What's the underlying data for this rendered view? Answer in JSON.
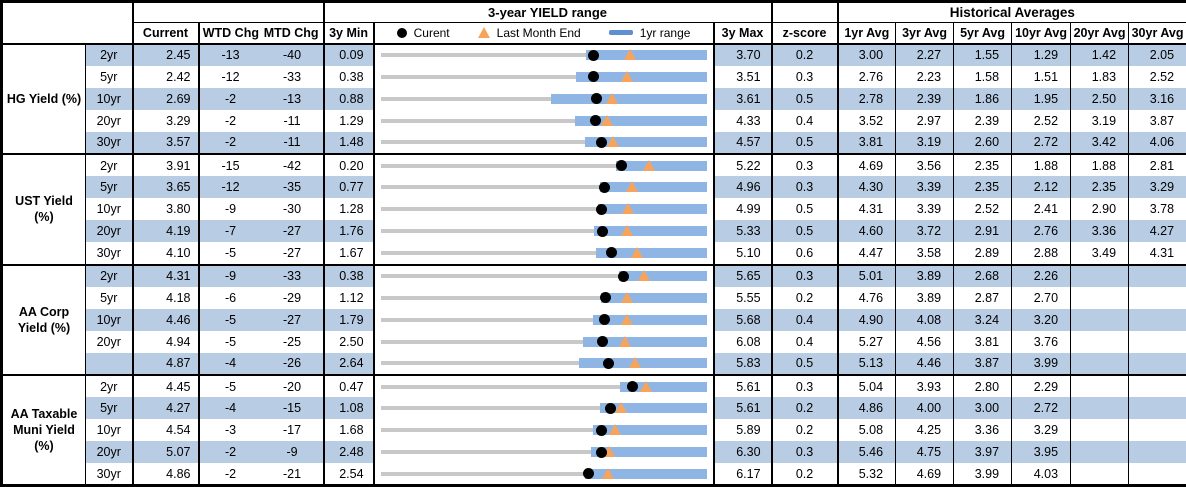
{
  "header": {
    "col_current": "Current",
    "col_wtd": "WTD Chg",
    "col_mtd": "MTD Chg",
    "col_3y_min": "3y Min",
    "chart_title": "3-year YIELD range",
    "legend": {
      "current": "Curent",
      "last_month_end": "Last Month End",
      "range_1yr": "1yr range"
    },
    "col_3y_max": "3y Max",
    "col_zscore": "z-score",
    "historical_title": "Historical Averages",
    "avg_cols": [
      "1yr Avg",
      "3yr Avg",
      "5yr Avg",
      "10yr Avg",
      "20yr Avg",
      "30yr Avg"
    ]
  },
  "colors": {
    "row_band_blue": "#b8cce4",
    "bar_1yr_blue": "#8fb5e4",
    "legend_dash_blue": "#5e8fd1",
    "marker_orange": "#f6a45c",
    "range_line_gray": "#c8c8c8",
    "marker_black": "#000000",
    "border_black": "#000000"
  },
  "chart_data": {
    "type": "table",
    "title": "3-year YIELD range",
    "description": "Yield table with embedded dot-plot range charts. Gray line spans 3y Min to 3y Max; blue bar is the 1yr range (est_1yr_low to est_1yr_high, estimated from pixels); black dot = Current; orange triangle = last month end (current - mtd_chg_bp/100).",
    "columns": [
      "tenor",
      "current",
      "wtd_chg_bp",
      "mtd_chg_bp",
      "3y_min",
      "3y_max",
      "z_score",
      "1yr_avg",
      "3yr_avg",
      "5yr_avg",
      "10yr_avg",
      "20yr_avg",
      "30yr_avg"
    ],
    "groups": [
      {
        "label": "HG Yield (%)",
        "rows": [
          {
            "tenor": "2yr",
            "current": "2.45",
            "wtd": "-13",
            "mtd": "-40",
            "min": "0.09",
            "max": "3.70",
            "z": "0.2",
            "lme": "2.85",
            "r1lo": "2.36",
            "r1hi": "3.70",
            "avgs": [
              "3.00",
              "2.27",
              "1.55",
              "1.29",
              "1.42",
              "2.05"
            ]
          },
          {
            "tenor": "5yr",
            "current": "2.42",
            "wtd": "-12",
            "mtd": "-33",
            "min": "0.38",
            "max": "3.51",
            "z": "0.3",
            "lme": "2.75",
            "r1lo": "2.26",
            "r1hi": "3.51",
            "avgs": [
              "2.76",
              "2.23",
              "1.58",
              "1.51",
              "1.83",
              "2.52"
            ]
          },
          {
            "tenor": "10yr",
            "current": "2.69",
            "wtd": "-2",
            "mtd": "-13",
            "min": "0.88",
            "max": "3.61",
            "z": "0.5",
            "lme": "2.82",
            "r1lo": "2.31",
            "r1hi": "3.61",
            "avgs": [
              "2.78",
              "2.39",
              "1.86",
              "1.95",
              "2.50",
              "3.16"
            ]
          },
          {
            "tenor": "20yr",
            "current": "3.29",
            "wtd": "-2",
            "mtd": "-11",
            "min": "1.29",
            "max": "4.33",
            "z": "0.4",
            "lme": "3.40",
            "r1lo": "3.10",
            "r1hi": "4.33",
            "avgs": [
              "3.52",
              "2.97",
              "2.39",
              "2.52",
              "3.19",
              "3.87"
            ]
          },
          {
            "tenor": "30yr",
            "current": "3.57",
            "wtd": "-2",
            "mtd": "-11",
            "min": "1.48",
            "max": "4.57",
            "z": "0.5",
            "lme": "3.68",
            "r1lo": "3.42",
            "r1hi": "4.57",
            "avgs": [
              "3.81",
              "3.19",
              "2.60",
              "2.72",
              "3.42",
              "4.06"
            ]
          }
        ]
      },
      {
        "label": "UST Yield (%)",
        "rows": [
          {
            "tenor": "2yr",
            "current": "3.91",
            "wtd": "-15",
            "mtd": "-42",
            "min": "0.20",
            "max": "5.22",
            "z": "0.3",
            "lme": "4.33",
            "r1lo": "3.82",
            "r1hi": "5.22",
            "avgs": [
              "4.69",
              "3.56",
              "2.35",
              "1.88",
              "1.88",
              "2.81"
            ]
          },
          {
            "tenor": "5yr",
            "current": "3.65",
            "wtd": "-12",
            "mtd": "-35",
            "min": "0.77",
            "max": "4.96",
            "z": "0.3",
            "lme": "4.00",
            "r1lo": "3.59",
            "r1hi": "4.96",
            "avgs": [
              "4.30",
              "3.39",
              "2.35",
              "2.12",
              "2.35",
              "3.29"
            ]
          },
          {
            "tenor": "10yr",
            "current": "3.80",
            "wtd": "-9",
            "mtd": "-30",
            "min": "1.28",
            "max": "4.99",
            "z": "0.5",
            "lme": "4.10",
            "r1lo": "3.75",
            "r1hi": "4.99",
            "avgs": [
              "4.31",
              "3.39",
              "2.52",
              "2.41",
              "2.90",
              "3.78"
            ]
          },
          {
            "tenor": "20yr",
            "current": "4.19",
            "wtd": "-7",
            "mtd": "-27",
            "min": "1.76",
            "max": "5.33",
            "z": "0.5",
            "lme": "4.46",
            "r1lo": "4.10",
            "r1hi": "5.33",
            "avgs": [
              "4.60",
              "3.72",
              "2.91",
              "2.76",
              "3.36",
              "4.27"
            ]
          },
          {
            "tenor": "30yr",
            "current": "4.10",
            "wtd": "-5",
            "mtd": "-27",
            "min": "1.67",
            "max": "5.10",
            "z": "0.6",
            "lme": "4.37",
            "r1lo": "3.94",
            "r1hi": "5.10",
            "avgs": [
              "4.47",
              "3.58",
              "2.89",
              "2.88",
              "3.49",
              "4.31"
            ]
          }
        ]
      },
      {
        "label": "AA Corp Yield (%)",
        "rows": [
          {
            "tenor": "2yr",
            "current": "4.31",
            "wtd": "-9",
            "mtd": "-33",
            "min": "0.38",
            "max": "5.65",
            "z": "0.3",
            "lme": "4.64",
            "r1lo": "4.23",
            "r1hi": "5.65",
            "avgs": [
              "5.01",
              "3.89",
              "2.68",
              "2.26",
              "",
              ""
            ]
          },
          {
            "tenor": "5yr",
            "current": "4.18",
            "wtd": "-6",
            "mtd": "-29",
            "min": "1.12",
            "max": "5.55",
            "z": "0.2",
            "lme": "4.47",
            "r1lo": "4.12",
            "r1hi": "5.55",
            "avgs": [
              "4.76",
              "3.89",
              "2.87",
              "2.70",
              "",
              ""
            ]
          },
          {
            "tenor": "10yr",
            "current": "4.46",
            "wtd": "-5",
            "mtd": "-27",
            "min": "1.79",
            "max": "5.68",
            "z": "0.4",
            "lme": "4.73",
            "r1lo": "4.33",
            "r1hi": "5.68",
            "avgs": [
              "4.90",
              "4.08",
              "3.24",
              "3.20",
              "",
              ""
            ]
          },
          {
            "tenor": "20yr",
            "current": "4.94",
            "wtd": "-5",
            "mtd": "-25",
            "min": "2.50",
            "max": "6.08",
            "z": "0.4",
            "lme": "5.19",
            "r1lo": "4.72",
            "r1hi": "6.08",
            "avgs": [
              "5.27",
              "4.56",
              "3.81",
              "3.76",
              "",
              ""
            ]
          },
          {
            "tenor": "",
            "current": "4.87",
            "wtd": "-4",
            "mtd": "-26",
            "min": "2.64",
            "max": "5.83",
            "z": "0.5",
            "lme": "5.13",
            "r1lo": "4.58",
            "r1hi": "5.83",
            "avgs": [
              "5.13",
              "4.46",
              "3.87",
              "3.99",
              "",
              ""
            ]
          }
        ]
      },
      {
        "label": "AA Taxable Muni Yield (%)",
        "rows": [
          {
            "tenor": "2yr",
            "current": "4.45",
            "wtd": "-5",
            "mtd": "-20",
            "min": "0.47",
            "max": "5.61",
            "z": "0.3",
            "lme": "4.65",
            "r1lo": "4.25",
            "r1hi": "5.61",
            "avgs": [
              "5.04",
              "3.93",
              "2.80",
              "2.29",
              "",
              ""
            ]
          },
          {
            "tenor": "5yr",
            "current": "4.27",
            "wtd": "-4",
            "mtd": "-15",
            "min": "1.08",
            "max": "5.61",
            "z": "0.2",
            "lme": "4.42",
            "r1lo": "4.13",
            "r1hi": "5.61",
            "avgs": [
              "4.86",
              "4.00",
              "3.00",
              "2.72",
              "",
              ""
            ]
          },
          {
            "tenor": "10yr",
            "current": "4.54",
            "wtd": "-3",
            "mtd": "-17",
            "min": "1.68",
            "max": "5.89",
            "z": "0.2",
            "lme": "4.71",
            "r1lo": "4.42",
            "r1hi": "5.89",
            "avgs": [
              "5.08",
              "4.25",
              "3.36",
              "3.29",
              "",
              ""
            ]
          },
          {
            "tenor": "20yr",
            "current": "5.07",
            "wtd": "-2",
            "mtd": "-9",
            "min": "2.48",
            "max": "6.30",
            "z": "0.3",
            "lme": "5.16",
            "r1lo": "4.95",
            "r1hi": "6.30",
            "avgs": [
              "5.46",
              "4.75",
              "3.97",
              "3.95",
              "",
              ""
            ]
          },
          {
            "tenor": "30yr",
            "current": "4.86",
            "wtd": "-2",
            "mtd": "-21",
            "min": "2.54",
            "max": "6.17",
            "z": "0.2",
            "lme": "5.07",
            "r1lo": "4.82",
            "r1hi": "6.17",
            "avgs": [
              "5.32",
              "4.69",
              "3.99",
              "4.03",
              "",
              ""
            ]
          }
        ]
      }
    ]
  }
}
